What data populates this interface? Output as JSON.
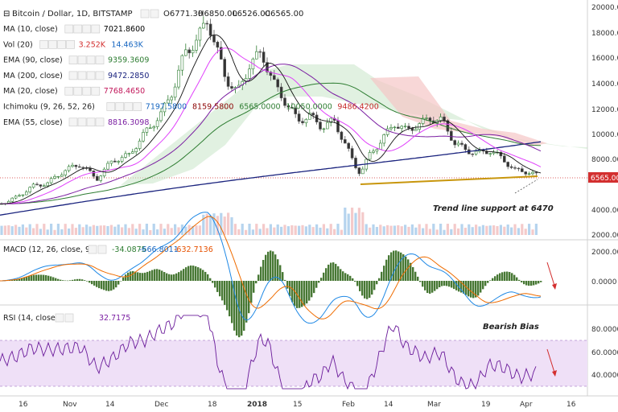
{
  "header": {
    "title": "Bitcoin / Dollar, 1D, BITSTAMP",
    "open": "O6771.30",
    "high": "H6850.00",
    "low": "L6526.00",
    "close": "C6565.00"
  },
  "indicators": [
    {
      "label": "MA (10, close)",
      "values": [
        "7021.8600"
      ],
      "colors": [
        "#000000"
      ]
    },
    {
      "label": "Vol (20)",
      "values": [
        "3.252K",
        "14.463K"
      ],
      "colors": [
        "#d32f2f",
        "#1565c0"
      ]
    },
    {
      "label": "EMA (90, close)",
      "values": [
        "9359.3609"
      ],
      "colors": [
        "#2e7d32"
      ]
    },
    {
      "label": "MA (200, close)",
      "values": [
        "9472.2850"
      ],
      "colors": [
        "#1a237e"
      ]
    },
    {
      "label": "MA (20, close)",
      "values": [
        "7768.4650"
      ],
      "colors": [
        "#c2185b"
      ]
    },
    {
      "label": "Ichimoku (9, 26, 52, 26)",
      "values": [
        "7197.5800",
        "8159.5800",
        "6565.0000",
        "10050.0000",
        "9486.4200"
      ],
      "colors": [
        "#1565c0",
        "#8b0000",
        "#2e7d32",
        "#2e7d32",
        "#c62828"
      ]
    },
    {
      "label": "EMA (55, close)",
      "values": [
        "8816.3098"
      ],
      "colors": [
        "#7b1fa2"
      ]
    }
  ],
  "macd": {
    "label": "MACD (12, 26, close, 9)",
    "values": [
      "-34.0875",
      "-666.8011",
      "-632.7136"
    ],
    "colors": [
      "#2e7d32",
      "#1565c0",
      "#e65100"
    ]
  },
  "rsi": {
    "label": "RSI (14, close)",
    "value": "32.7175",
    "color": "#7b1fa2"
  },
  "annotations": {
    "trendline": "Trend line support at 6470",
    "bias": "Bearish Bias"
  },
  "price_label": "6565.00",
  "chart_data": {
    "type": "line",
    "title": "Bitcoin / Dollar, 1D, BITSTAMP",
    "x": [
      "16",
      "Nov",
      "14",
      "Dec",
      "18",
      "2018",
      "15",
      "Feb",
      "14",
      "Mar",
      "19",
      "Apr",
      "16"
    ],
    "price_axis": {
      "ticks": [
        2000,
        4000,
        6000,
        8000,
        10000,
        12000,
        14000,
        16000,
        18000,
        20000
      ],
      "ylim": [
        1800,
        20600
      ],
      "scale": "linear"
    },
    "price": [
      {
        "t": "16",
        "v": 5600
      },
      {
        "t": "Nov",
        "v": 6700
      },
      {
        "t": "14",
        "v": 6500
      },
      {
        "t": "Dec",
        "v": 11000
      },
      {
        "t": "18",
        "v": 18000
      },
      {
        "t": "2018",
        "v": 13500
      },
      {
        "t": "15",
        "v": 11000
      },
      {
        "t": "Feb",
        "v": 7000
      },
      {
        "t": "14",
        "v": 10300
      },
      {
        "t": "Mar",
        "v": 11000
      },
      {
        "t": "19",
        "v": 8200
      },
      {
        "t": "Apr",
        "v": 7000
      },
      {
        "t": "Apr",
        "v": 6565
      }
    ],
    "trendline": {
      "label": "Trend line support at 6470"
    },
    "macd_axis": {
      "ticks": [
        2000,
        0
      ]
    },
    "rsi_axis": {
      "ticks": [
        80,
        60,
        40
      ]
    },
    "legend": "top-left",
    "grid": false
  }
}
